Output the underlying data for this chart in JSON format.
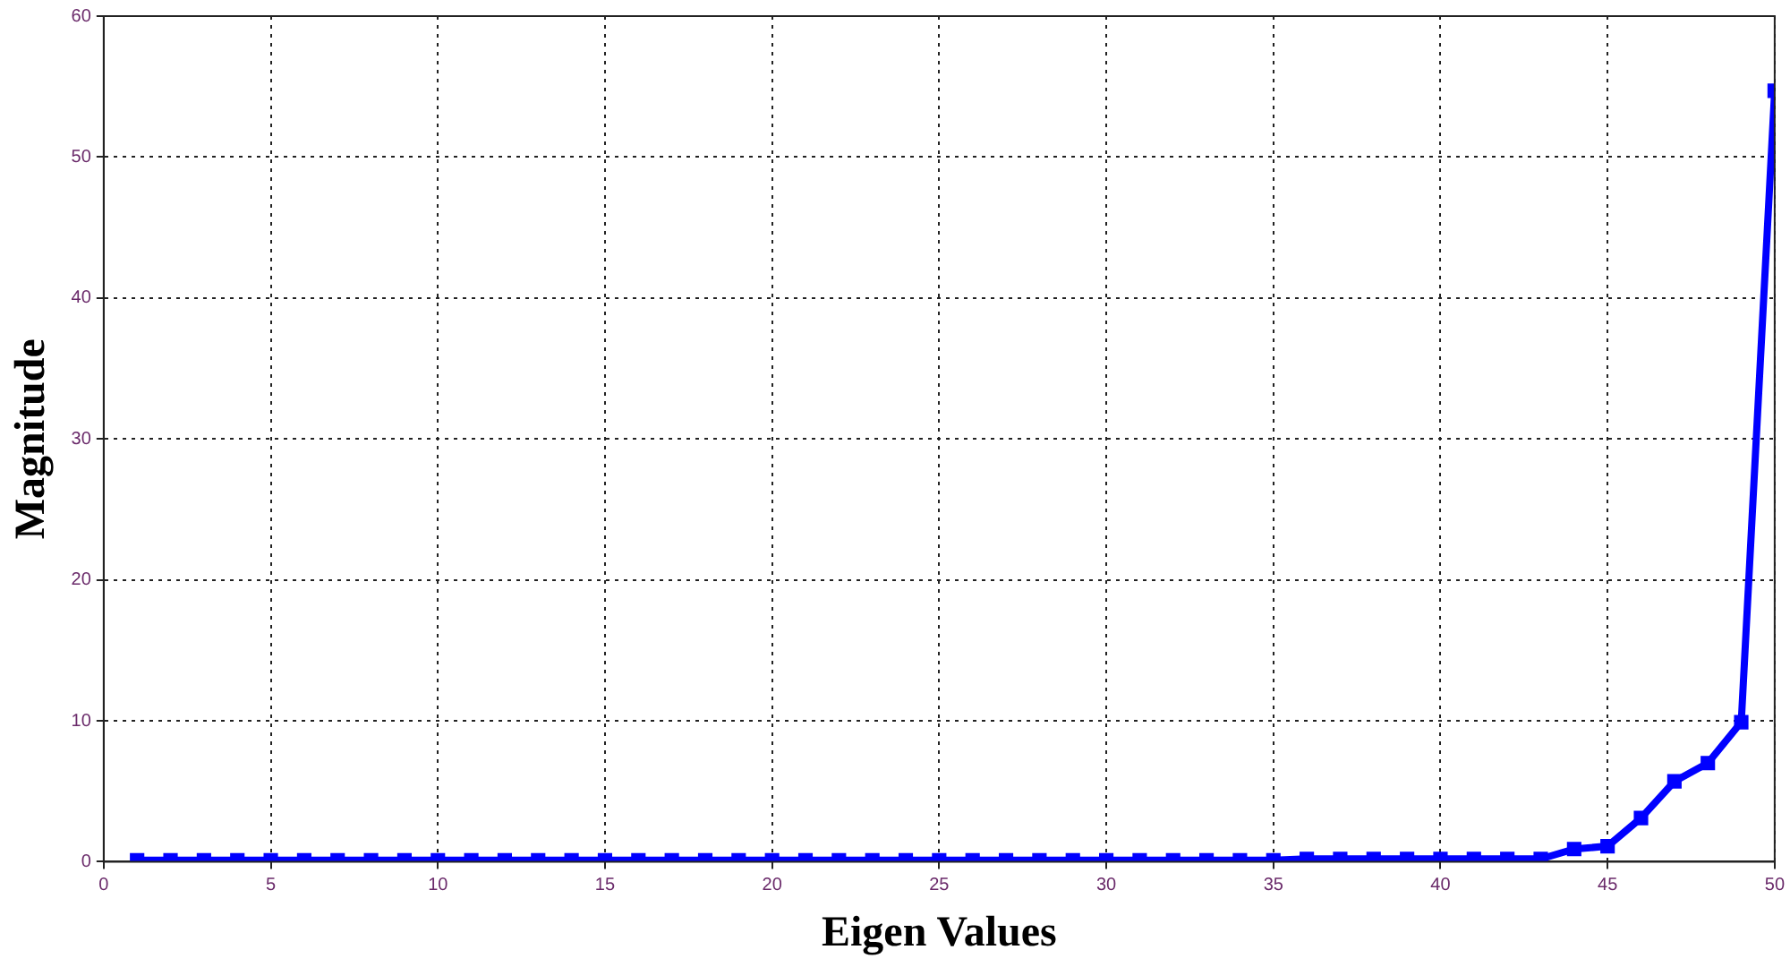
{
  "chart_data": {
    "type": "line",
    "xlabel": "Eigen Values",
    "ylabel": "Magnitude",
    "x": [
      1,
      2,
      3,
      4,
      5,
      6,
      7,
      8,
      9,
      10,
      11,
      12,
      13,
      14,
      15,
      16,
      17,
      18,
      19,
      20,
      21,
      22,
      23,
      24,
      25,
      26,
      27,
      28,
      29,
      30,
      31,
      32,
      33,
      34,
      35,
      36,
      37,
      38,
      39,
      40,
      41,
      42,
      43,
      44,
      45,
      46,
      47,
      48,
      49,
      50
    ],
    "series": [
      {
        "color": "#0000ff",
        "values": [
          0.1,
          0.1,
          0.1,
          0.1,
          0.1,
          0.1,
          0.1,
          0.1,
          0.1,
          0.1,
          0.1,
          0.1,
          0.1,
          0.1,
          0.1,
          0.1,
          0.1,
          0.1,
          0.1,
          0.1,
          0.1,
          0.1,
          0.1,
          0.1,
          0.1,
          0.1,
          0.1,
          0.1,
          0.1,
          0.1,
          0.1,
          0.1,
          0.1,
          0.1,
          0.1,
          0.2,
          0.2,
          0.2,
          0.2,
          0.2,
          0.2,
          0.2,
          0.2,
          0.9,
          1.1,
          3.1,
          5.7,
          7.0,
          9.9,
          54.7
        ]
      }
    ],
    "xlim": [
      0,
      50
    ],
    "xticks": [
      0,
      5,
      10,
      15,
      20,
      25,
      30,
      35,
      40,
      45,
      50
    ],
    "ylim": [
      0,
      60
    ],
    "yticks": [
      0,
      10,
      20,
      30,
      40,
      50,
      60
    ],
    "grid": true,
    "legend": false,
    "marker": "square",
    "line_style": "solid"
  }
}
